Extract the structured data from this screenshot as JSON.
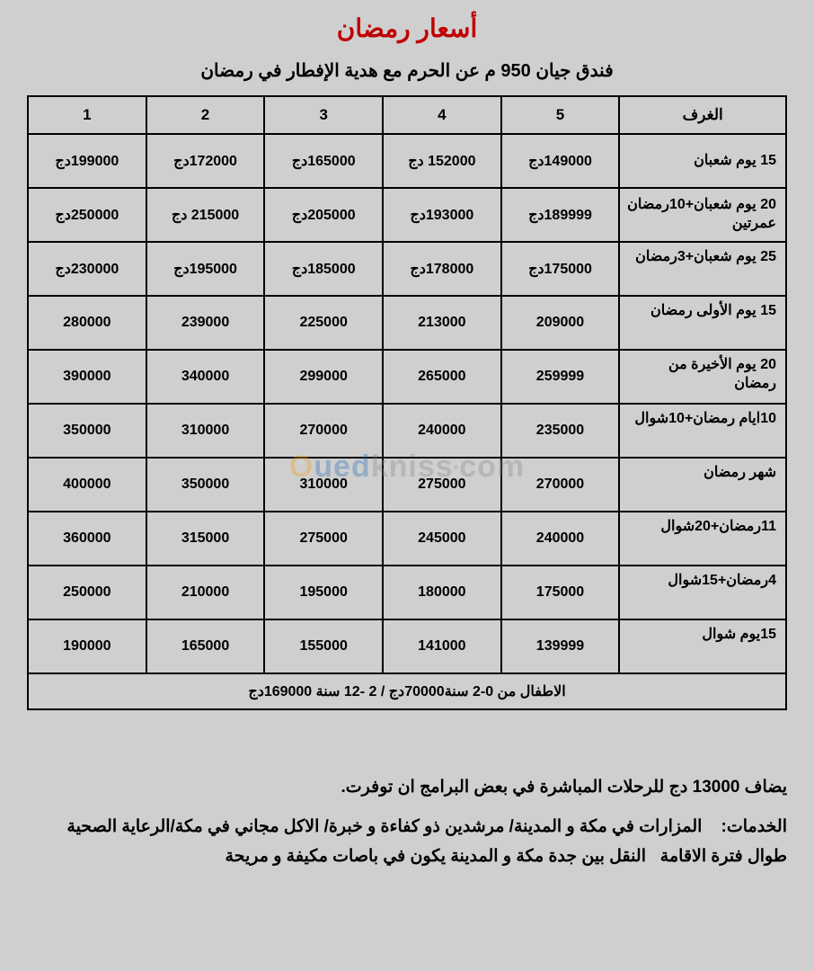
{
  "title": "أسعار رمضان",
  "subtitle": "فندق جيان 950 م عن الحرم مع هدية الإفطار في رمضان",
  "table": {
    "headers": [
      "الغرف",
      "5",
      "4",
      "3",
      "2",
      "1"
    ],
    "rows": [
      {
        "room": "15 يوم شعبان",
        "cells": [
          "149000دج",
          "152000 دج",
          "165000دج",
          "172000دج",
          "199000دج"
        ],
        "topAlign": false
      },
      {
        "room": "20 يوم شعبان+10رمضان عمرتين",
        "cells": [
          "189999دج",
          "193000دج",
          "205000دج",
          "215000 دج",
          "250000دج"
        ],
        "topAlign": false
      },
      {
        "room": "25 يوم شعبان+3رمضان",
        "cells": [
          "175000دج",
          "178000دج",
          "185000دج",
          "195000دج",
          "230000دج"
        ],
        "topAlign": true
      },
      {
        "room": "15 يوم الأولى رمضان",
        "cells": [
          "209000",
          "213000",
          "225000",
          "239000",
          "280000"
        ],
        "topAlign": true
      },
      {
        "room": "20 يوم الأخيرة من رمضان",
        "cells": [
          "259999",
          "265000",
          "299000",
          "340000",
          "390000"
        ],
        "topAlign": true
      },
      {
        "room": "10ايام رمضان+10شوال",
        "cells": [
          "235000",
          "240000",
          "270000",
          "310000",
          "350000"
        ],
        "topAlign": true
      },
      {
        "room": "شهر رمضان",
        "cells": [
          "270000",
          "275000",
          "310000",
          "350000",
          "400000"
        ],
        "topAlign": true
      },
      {
        "room": "11رمضان+20شوال",
        "cells": [
          "240000",
          "245000",
          "275000",
          "315000",
          "360000"
        ],
        "topAlign": true
      },
      {
        "room": "4رمضان+15شوال",
        "cells": [
          "175000",
          "180000",
          "195000",
          "210000",
          "250000"
        ],
        "topAlign": true
      },
      {
        "room": "15يوم شوال",
        "cells": [
          "139999",
          "141000",
          "155000",
          "165000",
          "190000"
        ],
        "topAlign": true
      }
    ],
    "childrenRow": "الاطفال من 0-2 سنة70000دج    /    2 -12 سنة 169000دج"
  },
  "notes": {
    "line1": "يضاف 13000 دج للرحلات المباشرة في بعض البرامج ان توفرت.",
    "line2": "الخدمات:    المزارات في مكة و المدينة/ مرشدين ذو كفاءة و خبرة/ الاكل مجاني في مكة/الرعاية الصحية طوال فترة الاقامة   النقل بين جدة مكة و المدينة يكون في باصات مكيفة و مريحة"
  },
  "watermark": {
    "part1": "O",
    "part2": "ued",
    "part3": "kniss",
    "part4": "•",
    "part5": "com"
  },
  "style": {
    "background": "#cfcfcf",
    "title_color": "#c00000",
    "border_color": "#000000",
    "text_color": "#000000"
  }
}
